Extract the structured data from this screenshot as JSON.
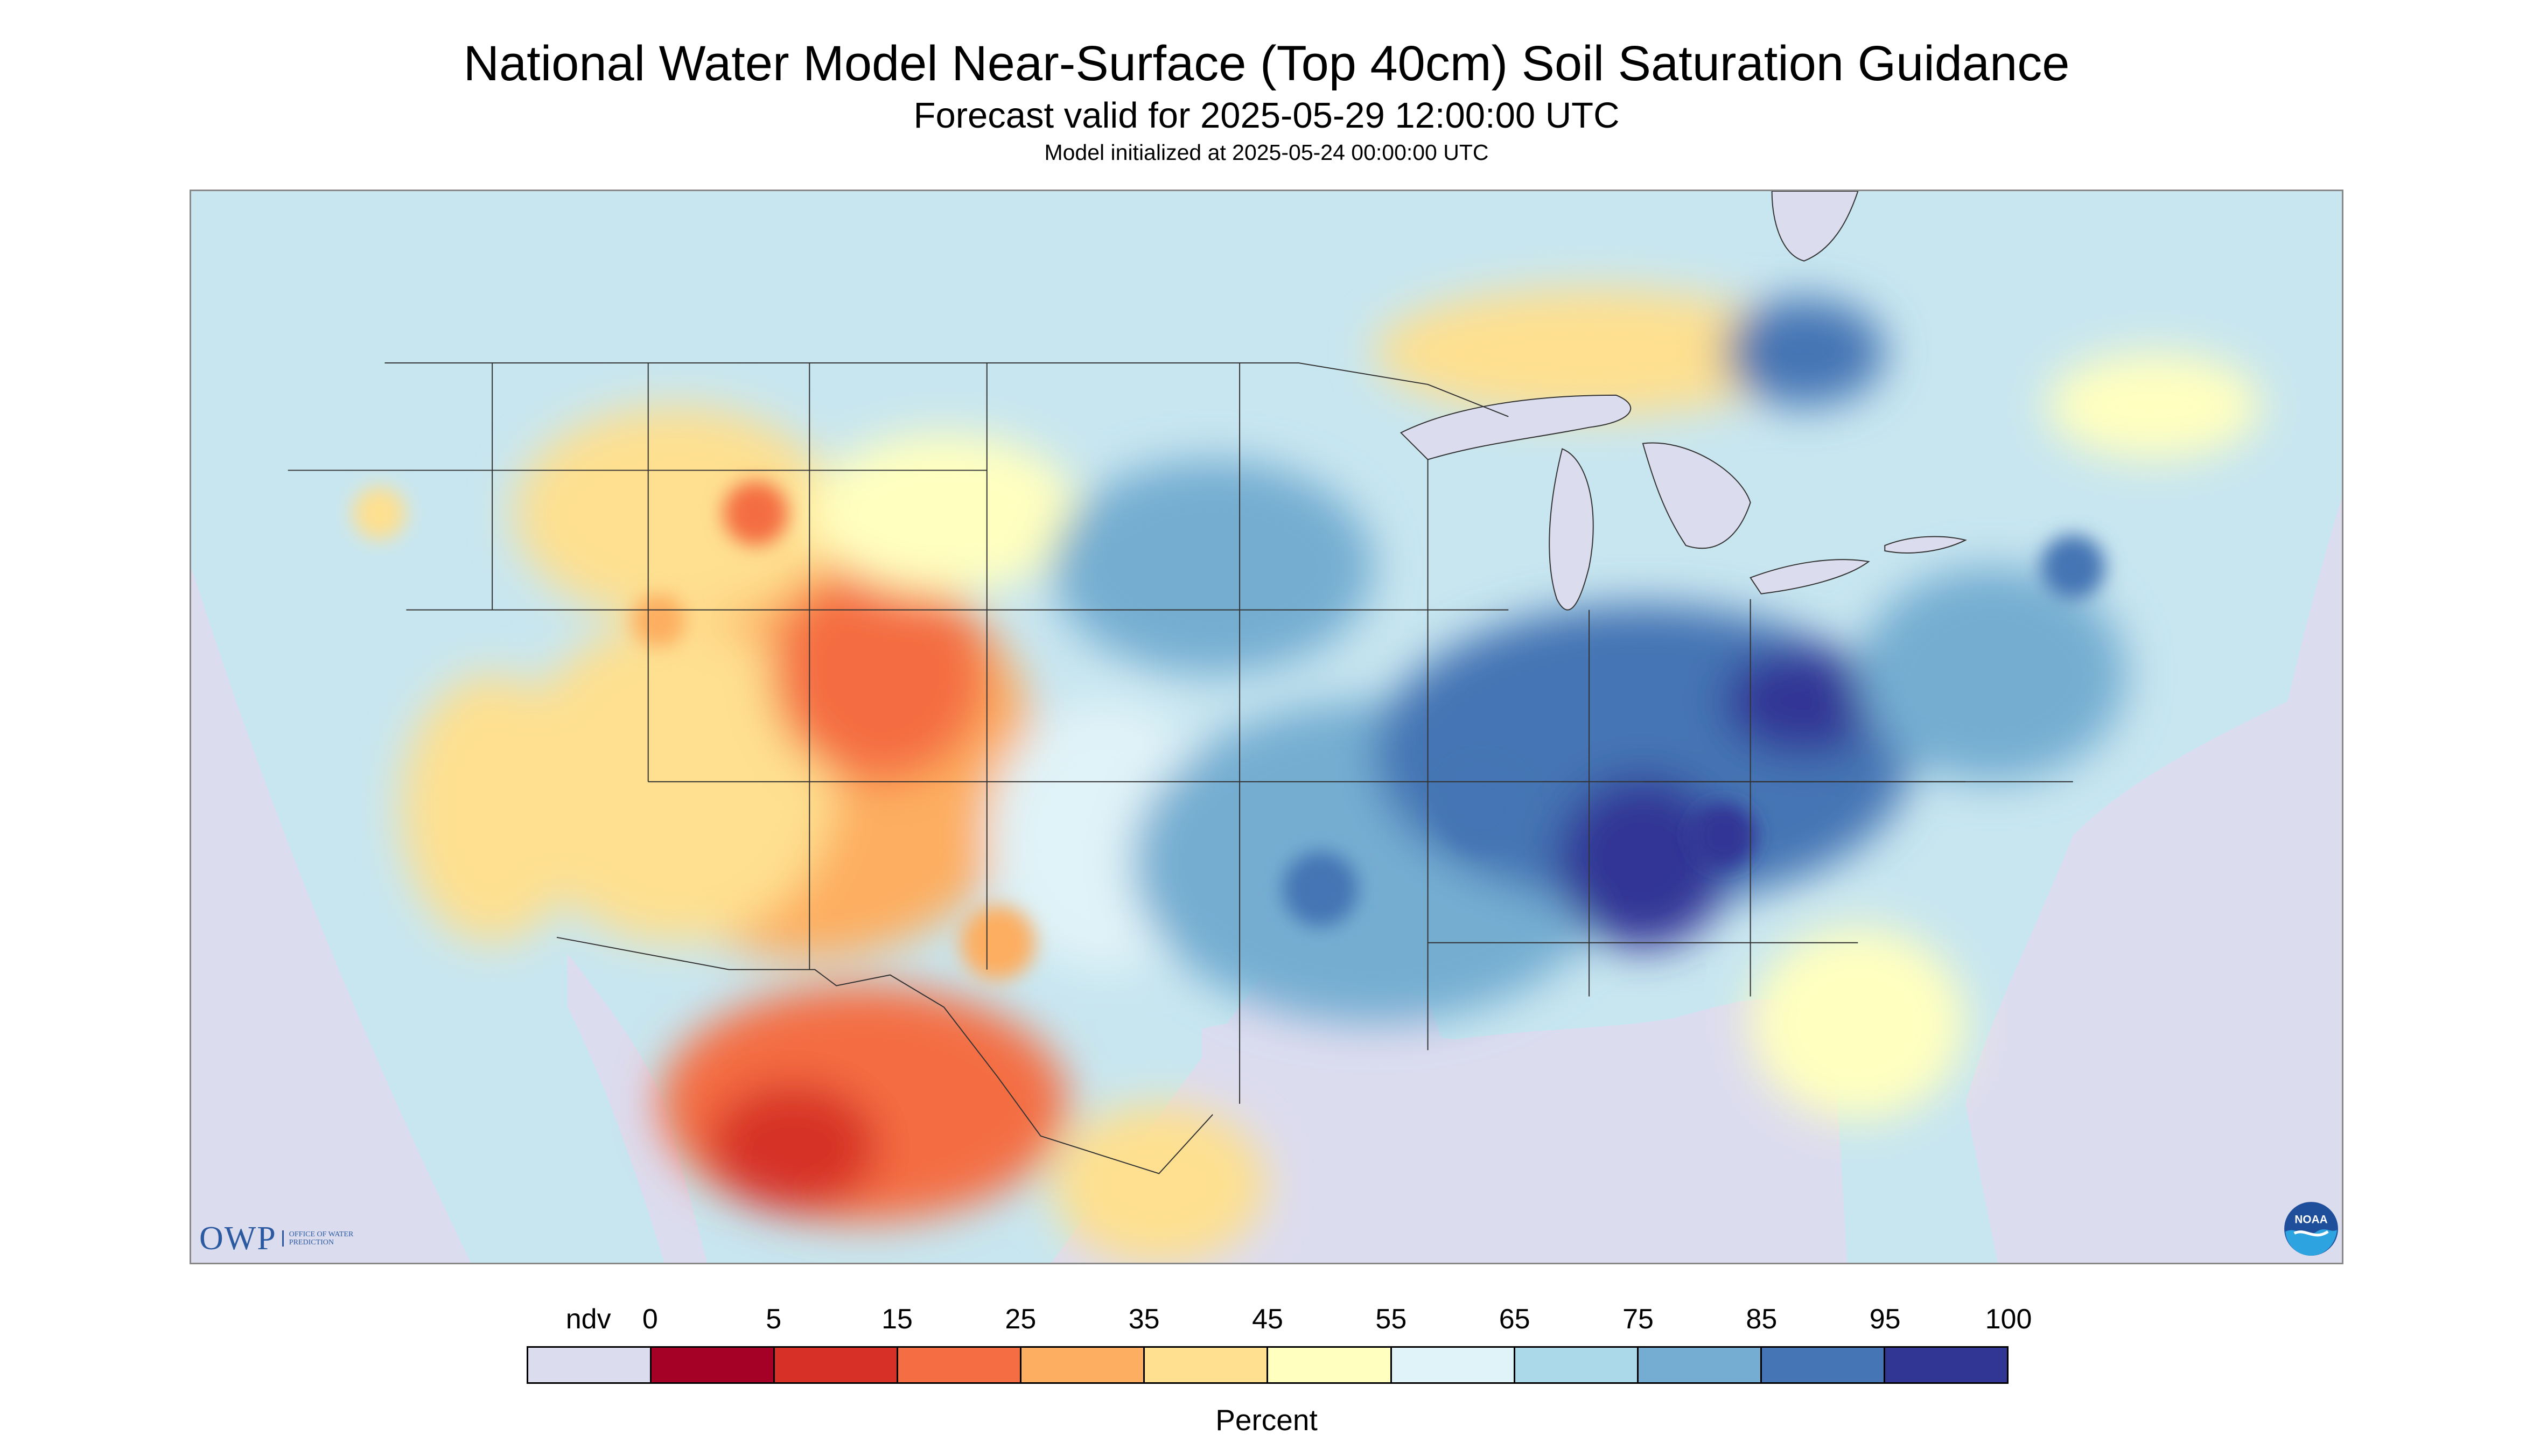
{
  "header": {
    "title": "National Water Model Near-Surface (Top 40cm) Soil Saturation Guidance",
    "subtitle": "Forecast valid for 2025-05-29 12:00:00 UTC",
    "init_line": "Model initialized at 2025-05-24 00:00:00 UTC"
  },
  "map": {
    "region": "Contiguous United States with southern Canada and northern Mexico",
    "nodata_color": "#dcdcef",
    "dominant_patterns": [
      "dry (red/orange) across the Desert Southwest and northern Mexico",
      "moist (dark blue) across the Mississippi/Ohio Valleys and Southeast",
      "moderate (light blue/yellow) across the Plains and West"
    ]
  },
  "logos": {
    "owp_word": "OWP",
    "owp_subtext": "OFFICE OF WATER PREDICTION",
    "noaa_text": "NOAA"
  },
  "legend": {
    "label_ndv": "ndv",
    "ticks": [
      "0",
      "5",
      "15",
      "25",
      "35",
      "45",
      "55",
      "65",
      "75",
      "85",
      "95",
      "100"
    ],
    "colors": [
      "#dcdcef",
      "#a50026",
      "#d73027",
      "#f46d43",
      "#fdae61",
      "#fee090",
      "#ffffbf",
      "#e0f3f8",
      "#abd9e9",
      "#74add1",
      "#4575b4",
      "#313695"
    ],
    "units": "Percent"
  }
}
